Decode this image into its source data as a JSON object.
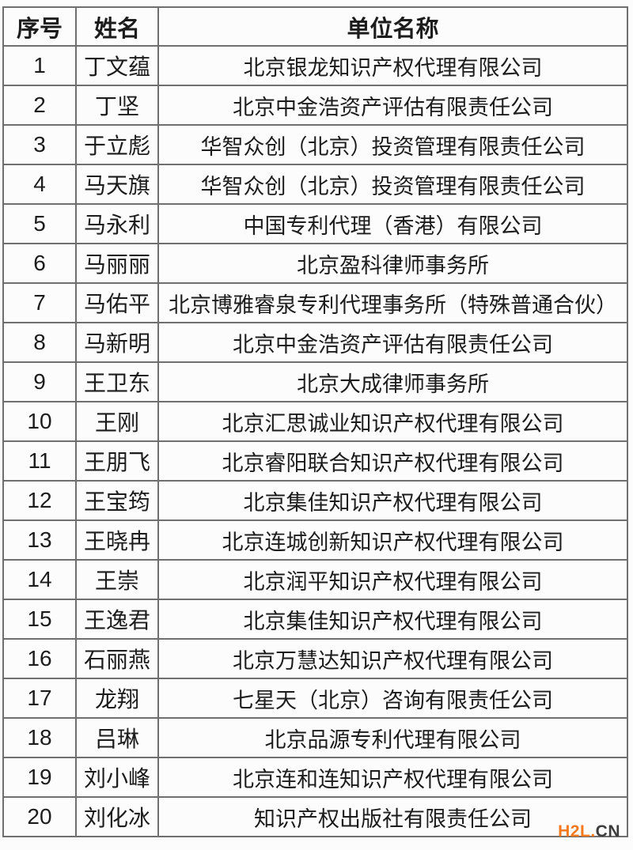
{
  "table": {
    "headers": [
      "序号",
      "姓名",
      "单位名称"
    ],
    "rows": [
      {
        "no": "1",
        "name": "丁文蕴",
        "org": "北京银龙知识产权代理有限公司"
      },
      {
        "no": "2",
        "name": "丁坚",
        "org": "北京中金浩资产评估有限责任公司"
      },
      {
        "no": "3",
        "name": "于立彪",
        "org": "华智众创（北京）投资管理有限责任公司"
      },
      {
        "no": "4",
        "name": "马天旗",
        "org": "华智众创（北京）投资管理有限责任公司"
      },
      {
        "no": "5",
        "name": "马永利",
        "org": "中国专利代理（香港）有限公司"
      },
      {
        "no": "6",
        "name": "马丽丽",
        "org": "北京盈科律师事务所"
      },
      {
        "no": "7",
        "name": "马佑平",
        "org": "北京博雅睿泉专利代理事务所（特殊普通合伙）"
      },
      {
        "no": "8",
        "name": "马新明",
        "org": "北京中金浩资产评估有限责任公司"
      },
      {
        "no": "9",
        "name": "王卫东",
        "org": "北京大成律师事务所"
      },
      {
        "no": "10",
        "name": "王刚",
        "org": "北京汇思诚业知识产权代理有限公司"
      },
      {
        "no": "11",
        "name": "王朋飞",
        "org": "北京睿阳联合知识产权代理有限公司"
      },
      {
        "no": "12",
        "name": "王宝筠",
        "org": "北京集佳知识产权代理有限公司"
      },
      {
        "no": "13",
        "name": "王晓冉",
        "org": "北京连城创新知识产权代理有限公司"
      },
      {
        "no": "14",
        "name": "王崇",
        "org": "北京润平知识产权代理有限公司"
      },
      {
        "no": "15",
        "name": "王逸君",
        "org": "北京集佳知识产权代理有限公司"
      },
      {
        "no": "16",
        "name": "石丽燕",
        "org": "北京万慧达知识产权代理有限公司"
      },
      {
        "no": "17",
        "name": "龙翔",
        "org": "七星天（北京）咨询有限责任公司"
      },
      {
        "no": "18",
        "name": "吕琳",
        "org": "北京品源专利代理有限公司"
      },
      {
        "no": "19",
        "name": "刘小峰",
        "org": "北京连和连知识产权代理有限公司"
      },
      {
        "no": "20",
        "name": "刘化冰",
        "org": "知识产权出版社有限责任公司"
      }
    ]
  },
  "watermark": {
    "primary": "H2L.",
    "secondary": "CN",
    "primary_color": "#F4791F",
    "secondary_color": "#3C3C3C"
  }
}
